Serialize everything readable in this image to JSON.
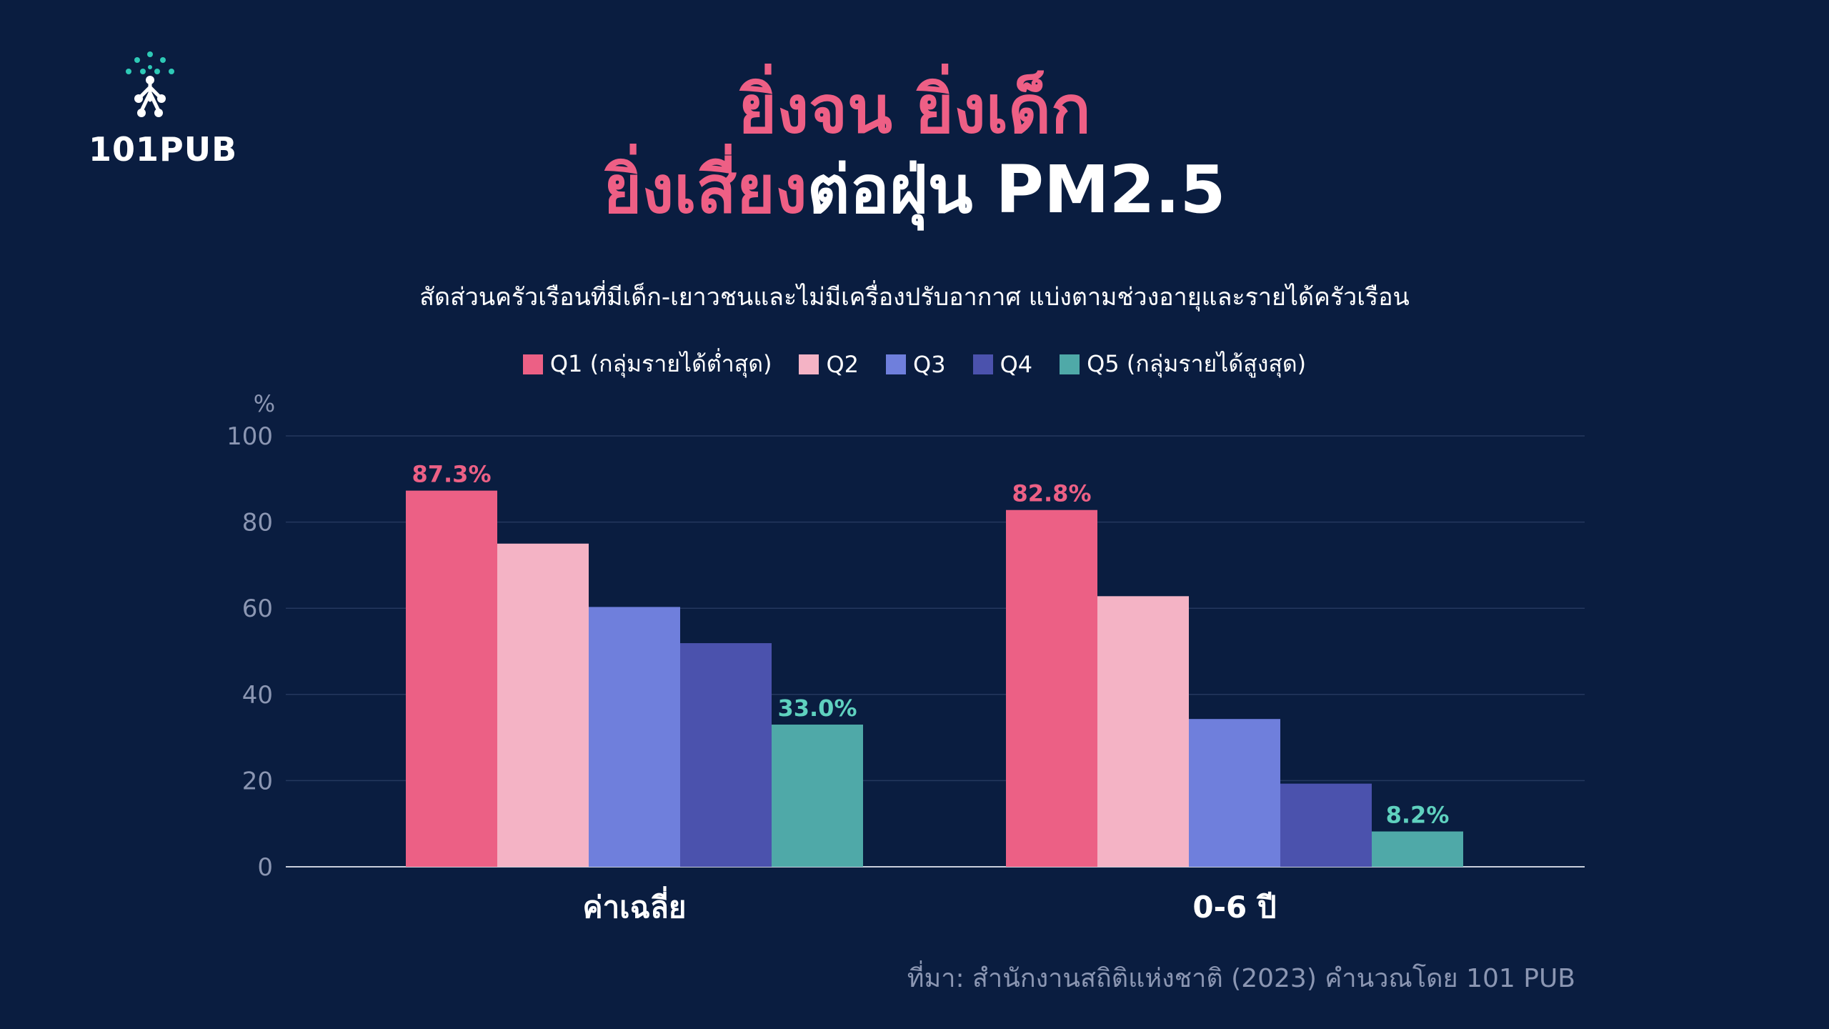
{
  "brand": {
    "logo_text": "101PUB",
    "logo_icon": "network-tree-icon",
    "accent": "#2ec9b6"
  },
  "title": {
    "line1": "ยิ่งจน ยิ่งเด็ก",
    "line2_highlight": "ยิ่งเสี่ยง",
    "line2_rest": "ต่อฝุ่น PM2.5"
  },
  "subtitle": "สัดส่วนครัวเรือนที่มีเด็ก-เยาวชนและไม่มีเครื่องปรับอากาศ แบ่งตามช่วงอายุและรายได้ครัวเรือน",
  "source": "ที่มา: สำนักงานสถิติแห่งชาติ (2023) คำนวณโดย 101 PUB",
  "chart_data": {
    "type": "bar",
    "ylabel": "%",
    "ylim": [
      0,
      100
    ],
    "yticks": [
      0,
      20,
      40,
      60,
      80,
      100
    ],
    "grid": true,
    "legend_position": "top-center",
    "categories": [
      "ค่าเฉลี่ย",
      "0-6 ปี"
    ],
    "series": [
      {
        "name": "Q1 (กลุ่มรายได้ต่ำสุด)",
        "color": "#ec6085",
        "values": [
          87.3,
          82.8
        ],
        "labels": [
          "87.3%",
          "82.8%"
        ],
        "label_color": "#ec6085"
      },
      {
        "name": "Q2",
        "color": "#f4b3c5",
        "values": [
          75,
          62.8
        ],
        "labels": [
          "",
          ""
        ]
      },
      {
        "name": "Q3",
        "color": "#6f7fdc",
        "values": [
          60.3,
          34.3
        ],
        "labels": [
          "",
          ""
        ]
      },
      {
        "name": "Q4",
        "color": "#4b52ad",
        "values": [
          51.9,
          19.3
        ],
        "labels": [
          "",
          ""
        ]
      },
      {
        "name": "Q5 (กลุ่มรายได้สูงสุด)",
        "color": "#4fa9a8",
        "values": [
          33.0,
          8.2
        ],
        "labels": [
          "33.0%",
          "8.2%"
        ],
        "label_color": "#5fd1bf"
      }
    ]
  }
}
